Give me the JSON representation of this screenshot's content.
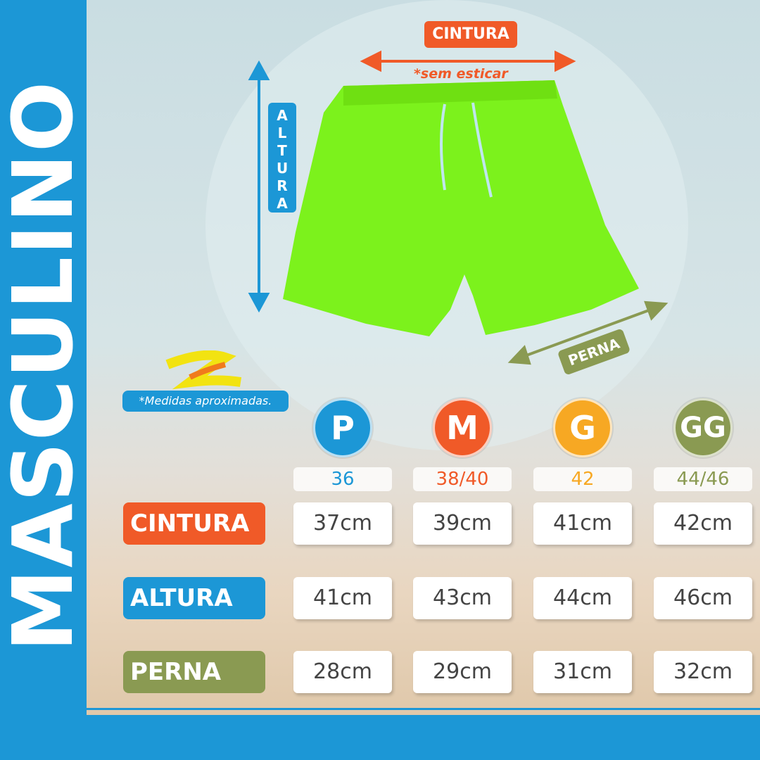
{
  "title": "MASCULINO",
  "colors": {
    "blue": "#1c97d6",
    "orange": "#f05a28",
    "yellow": "#f7a823",
    "green": "#8a9a52",
    "shorts": "#7cf21c"
  },
  "diagram": {
    "cintura": "CINTURA",
    "sem_esticar": "*sem esticar",
    "altura": "ALTURA",
    "perna": "PERNA"
  },
  "note": "*Medidas aproximadas.",
  "sizes": [
    {
      "label": "P",
      "number": "36",
      "color": "#1c97d6"
    },
    {
      "label": "M",
      "number": "38/40",
      "color": "#f05a28"
    },
    {
      "label": "G",
      "number": "42",
      "color": "#f7a823"
    },
    {
      "label": "GG",
      "number": "44/46",
      "color": "#8a9a52"
    }
  ],
  "rows": [
    {
      "label": "CINTURA",
      "color": "#f05a28",
      "values": [
        "37cm",
        "39cm",
        "41cm",
        "42cm"
      ]
    },
    {
      "label": "ALTURA",
      "color": "#1c97d6",
      "values": [
        "41cm",
        "43cm",
        "44cm",
        "46cm"
      ]
    },
    {
      "label": "PERNA",
      "color": "#8a9a52",
      "values": [
        "28cm",
        "29cm",
        "31cm",
        "32cm"
      ]
    }
  ]
}
